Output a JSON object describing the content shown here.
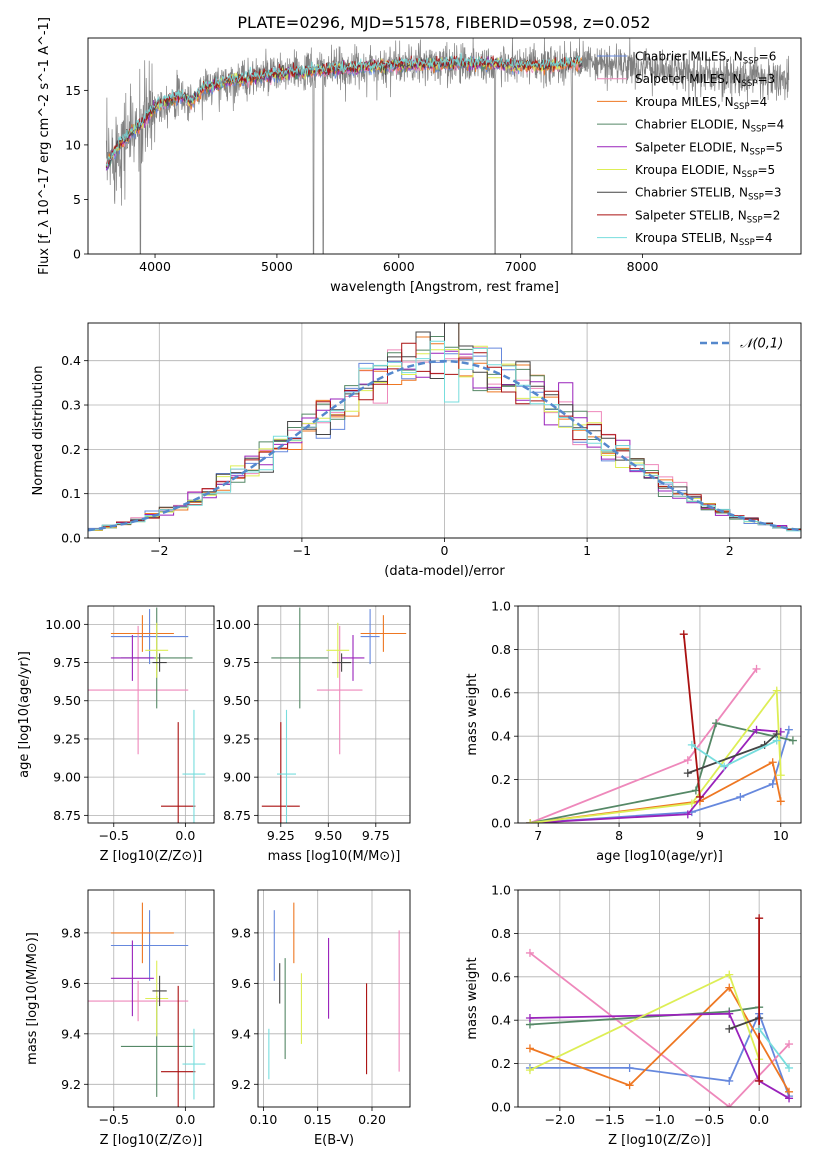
{
  "figure_title": "PLATE=0296, MJD=51578, FIBERID=0598, z=0.052",
  "model_colors": [
    "#6688dd",
    "#ee88bb",
    "#ee7722",
    "#558866",
    "#9922bb",
    "#ddee55",
    "#444444",
    "#aa1111",
    "#77dddd"
  ],
  "chart_data": [
    {
      "id": "spectrum",
      "type": "line",
      "xlabel": "wavelength [Angstrom, rest frame]",
      "ylabel": "Flux [f_λ 10^-17 erg cm^-2 s^-1 A^-1]",
      "xlim": [
        3450,
        9300
      ],
      "ylim": [
        0,
        19.8
      ],
      "xticks": [
        4000,
        5000,
        6000,
        7000,
        8000
      ],
      "yticks": [
        0,
        5,
        10,
        15
      ],
      "grid": false,
      "legend_position": "right",
      "legend": [
        {
          "imf": "Chabrier",
          "lib": "MILES",
          "nssp": "6"
        },
        {
          "imf": "Salpeter",
          "lib": "MILES",
          "nssp": "3"
        },
        {
          "imf": "Kroupa",
          "lib": "MILES",
          "nssp": "4"
        },
        {
          "imf": "Chabrier",
          "lib": "ELODIE",
          "nssp": "4"
        },
        {
          "imf": "Salpeter",
          "lib": "ELODIE",
          "nssp": "5"
        },
        {
          "imf": "Kroupa",
          "lib": "ELODIE",
          "nssp": "5"
        },
        {
          "imf": "Chabrier",
          "lib": "STELIB",
          "nssp": "3"
        },
        {
          "imf": "Salpeter",
          "lib": "STELIB",
          "nssp": "2"
        },
        {
          "imf": "Kroupa",
          "lib": "STELIB",
          "nssp": "4"
        }
      ],
      "data_color": "#808080",
      "data_range": [
        3600,
        9200
      ],
      "continuum": {
        "x": [
          3600,
          3700,
          3800,
          3900,
          4000,
          4100,
          4200,
          4300,
          4400,
          4600,
          4800,
          5000,
          5200,
          5400,
          5600,
          5800,
          6000,
          6300,
          6600,
          6900,
          7200,
          7500,
          7800,
          8100,
          8400,
          8700,
          9000,
          9200
        ],
        "y": [
          8,
          10,
          11,
          12,
          13.5,
          14,
          14.5,
          14,
          15.2,
          15.8,
          16.2,
          16.5,
          16.7,
          16.9,
          17,
          17.2,
          17.3,
          17.4,
          17.5,
          17.3,
          17.2,
          17.5,
          17.3,
          17,
          16.6,
          16.3,
          16.1,
          16
        ]
      },
      "models_range": [
        3600,
        7500
      ],
      "spikes_down": [
        [
          3880,
          0
        ],
        [
          5300,
          0
        ],
        [
          5380,
          0
        ],
        [
          6790,
          0
        ],
        [
          7420,
          0
        ]
      ]
    },
    {
      "id": "residuals",
      "type": "histogram",
      "xlabel": "(data-model)/error",
      "ylabel": "Normed distribution",
      "xlim": [
        -2.5,
        2.5
      ],
      "ylim": [
        0,
        0.485
      ],
      "xticks": [
        -2,
        -1,
        0,
        1,
        2
      ],
      "yticks": [
        0.0,
        0.1,
        0.2,
        0.3,
        0.4
      ],
      "grid": true,
      "bins": 50,
      "reference": {
        "label": "𝒩(0,1)",
        "mean": 0,
        "sigma": 1,
        "color": "#5588cc",
        "style": "dashed"
      },
      "legend_position": "top-right"
    },
    {
      "id": "age_vs_Z",
      "type": "errorbar",
      "xlabel": "Z [log10(Z/Z⊙)]",
      "ylabel": "age [log10(age/yr)]",
      "xlim": [
        -0.68,
        0.2
      ],
      "ylim": [
        8.7,
        10.12
      ],
      "xticks": [
        -0.5,
        0.0
      ],
      "yticks": [
        8.75,
        9.0,
        9.25,
        9.5,
        9.75,
        10.0
      ],
      "grid": true,
      "points": [
        {
          "x": -0.25,
          "xerr": 0.27,
          "y": 9.92,
          "yerr": 0.18
        },
        {
          "x": -0.33,
          "xerr": 0.35,
          "y": 9.57,
          "yerr": 0.42
        },
        {
          "x": -0.3,
          "xerr": 0.22,
          "y": 9.94,
          "yerr": 0.12
        },
        {
          "x": -0.2,
          "xerr": 0.25,
          "y": 9.78,
          "yerr": 0.33
        },
        {
          "x": -0.37,
          "xerr": 0.15,
          "y": 9.78,
          "yerr": 0.15
        },
        {
          "x": -0.2,
          "xerr": 0.08,
          "y": 9.83,
          "yerr": 0.18
        },
        {
          "x": -0.18,
          "xerr": 0.05,
          "y": 9.75,
          "yerr": 0.06
        },
        {
          "x": -0.05,
          "xerr": 0.12,
          "y": 8.81,
          "yerr": 0.55
        },
        {
          "x": 0.06,
          "xerr": 0.08,
          "y": 9.02,
          "yerr": 0.42
        }
      ]
    },
    {
      "id": "age_vs_mass",
      "type": "errorbar",
      "xlabel": "mass [log10(M/M⊙)]",
      "ylabel": "",
      "xlim": [
        9.13,
        9.93
      ],
      "ylim": [
        8.7,
        10.12
      ],
      "xticks": [
        9.25,
        9.5,
        9.75
      ],
      "yticks": [
        8.75,
        9.0,
        9.25,
        9.5,
        9.75,
        10.0
      ],
      "grid": true,
      "points": [
        {
          "x": 9.72,
          "xerr": 0.05,
          "y": 9.92,
          "yerr": 0.18
        },
        {
          "x": 9.56,
          "xerr": 0.12,
          "y": 9.57,
          "yerr": 0.42
        },
        {
          "x": 9.79,
          "xerr": 0.12,
          "y": 9.94,
          "yerr": 0.12
        },
        {
          "x": 9.35,
          "xerr": 0.15,
          "y": 9.78,
          "yerr": 0.33
        },
        {
          "x": 9.63,
          "xerr": 0.06,
          "y": 9.78,
          "yerr": 0.15
        },
        {
          "x": 9.55,
          "xerr": 0.06,
          "y": 9.83,
          "yerr": 0.18
        },
        {
          "x": 9.57,
          "xerr": 0.05,
          "y": 9.75,
          "yerr": 0.06
        },
        {
          "x": 9.25,
          "xerr": 0.1,
          "y": 8.81,
          "yerr": 0.55
        },
        {
          "x": 9.28,
          "xerr": 0.05,
          "y": 9.02,
          "yerr": 0.42
        }
      ]
    },
    {
      "id": "weight_vs_age",
      "type": "line",
      "xlabel": "age [log10(age/yr)]",
      "ylabel": "mass weight",
      "xlim": [
        6.75,
        10.25
      ],
      "ylim": [
        0,
        1
      ],
      "xticks": [
        7,
        8,
        9,
        10
      ],
      "yticks": [
        0.0,
        0.2,
        0.4,
        0.6,
        0.8,
        1.0
      ],
      "grid": true,
      "series": [
        {
          "x": [
            6.9,
            8.9,
            9.5,
            9.9,
            10.1
          ],
          "y": [
            0.0,
            0.05,
            0.12,
            0.18,
            0.43
          ]
        },
        {
          "x": [
            6.9,
            8.85,
            9.7
          ],
          "y": [
            0.0,
            0.29,
            0.71
          ]
        },
        {
          "x": [
            6.9,
            9.0,
            9.9,
            10.0
          ],
          "y": [
            0.0,
            0.1,
            0.28,
            0.1
          ]
        },
        {
          "x": [
            6.9,
            8.95,
            9.2,
            10.15
          ],
          "y": [
            0.0,
            0.15,
            0.46,
            0.38
          ]
        },
        {
          "x": [
            6.9,
            8.85,
            9.7,
            10.0
          ],
          "y": [
            0.0,
            0.04,
            0.43,
            0.42
          ]
        },
        {
          "x": [
            6.9,
            8.9,
            9.95,
            10.0
          ],
          "y": [
            0.0,
            0.09,
            0.61,
            0.22
          ]
        },
        {
          "x": [
            8.85,
            9.8,
            9.95
          ],
          "y": [
            0.23,
            0.36,
            0.41
          ]
        },
        {
          "x": [
            8.8,
            9.0
          ],
          "y": [
            0.87,
            0.12
          ]
        },
        {
          "x": [
            8.9,
            9.3,
            9.95
          ],
          "y": [
            0.36,
            0.26,
            0.38
          ]
        }
      ]
    },
    {
      "id": "mass_vs_Z",
      "type": "errorbar",
      "xlabel": "Z [log10(Z/Z⊙)]",
      "ylabel": "mass [log10(M/M⊙)]",
      "xlim": [
        -0.68,
        0.2
      ],
      "ylim": [
        9.11,
        9.97
      ],
      "xticks": [
        -0.5,
        0.0
      ],
      "yticks": [
        9.2,
        9.4,
        9.6,
        9.8
      ],
      "grid": true,
      "points": [
        {
          "x": -0.25,
          "xerr": 0.27,
          "y": 9.75,
          "yerr": 0.14
        },
        {
          "x": -0.33,
          "xerr": 0.35,
          "y": 9.53,
          "yerr": 0.08
        },
        {
          "x": -0.3,
          "xerr": 0.22,
          "y": 9.8,
          "yerr": 0.12
        },
        {
          "x": -0.2,
          "xerr": 0.25,
          "y": 9.35,
          "yerr": 0.2
        },
        {
          "x": -0.37,
          "xerr": 0.15,
          "y": 9.62,
          "yerr": 0.15
        },
        {
          "x": -0.2,
          "xerr": 0.08,
          "y": 9.54,
          "yerr": 0.15
        },
        {
          "x": -0.18,
          "xerr": 0.05,
          "y": 9.57,
          "yerr": 0.06
        },
        {
          "x": -0.05,
          "xerr": 0.12,
          "y": 9.25,
          "yerr": 0.34
        },
        {
          "x": 0.06,
          "xerr": 0.08,
          "y": 9.28,
          "yerr": 0.14
        }
      ]
    },
    {
      "id": "EBV",
      "type": "errorbar",
      "xlabel": "E(B-V)",
      "ylabel": "",
      "xlim": [
        0.095,
        0.235
      ],
      "ylim": [
        9.11,
        9.97
      ],
      "xticks": [
        0.1,
        0.15,
        0.2
      ],
      "yticks": [
        9.2,
        9.4,
        9.6,
        9.8
      ],
      "grid": true,
      "points": [
        {
          "x": 0.11,
          "y": 9.75,
          "yerr": 0.14
        },
        {
          "x": 0.225,
          "y": 9.53,
          "yerr": 0.28
        },
        {
          "x": 0.128,
          "y": 9.8,
          "yerr": 0.12
        },
        {
          "x": 0.12,
          "y": 9.5,
          "yerr": 0.2
        },
        {
          "x": 0.16,
          "y": 9.62,
          "yerr": 0.16
        },
        {
          "x": 0.135,
          "y": 9.5,
          "yerr": 0.14
        },
        {
          "x": 0.115,
          "y": 9.6,
          "yerr": 0.08
        },
        {
          "x": 0.195,
          "y": 9.42,
          "yerr": 0.18
        },
        {
          "x": 0.105,
          "y": 9.32,
          "yerr": 0.1
        }
      ]
    },
    {
      "id": "weight_vs_Z",
      "type": "line",
      "xlabel": "Z [log10(Z/Z⊙)]",
      "ylabel": "mass weight",
      "xlim": [
        -2.42,
        0.42
      ],
      "ylim": [
        0,
        1
      ],
      "xticks": [
        -2.0,
        -1.5,
        -1.0,
        -0.5,
        0.0
      ],
      "yticks": [
        0.0,
        0.2,
        0.4,
        0.6,
        0.8,
        1.0
      ],
      "grid": true,
      "series": [
        {
          "x": [
            -2.3,
            -1.3,
            -0.3,
            0.0,
            0.3
          ],
          "y": [
            0.18,
            0.18,
            0.12,
            0.43,
            0.05
          ]
        },
        {
          "x": [
            -2.3,
            -0.3,
            0.3
          ],
          "y": [
            0.71,
            0.0,
            0.29
          ]
        },
        {
          "x": [
            -2.3,
            -1.3,
            -0.3,
            0.3
          ],
          "y": [
            0.27,
            0.1,
            0.55,
            0.07
          ]
        },
        {
          "x": [
            -2.3,
            -0.3,
            0.0
          ],
          "y": [
            0.38,
            0.44,
            0.46
          ]
        },
        {
          "x": [
            -2.3,
            -0.3,
            0.0,
            0.3
          ],
          "y": [
            0.41,
            0.43,
            0.12,
            0.04
          ]
        },
        {
          "x": [
            -2.3,
            -0.3,
            0.0
          ],
          "y": [
            0.17,
            0.61,
            0.22
          ]
        },
        {
          "x": [
            -0.3,
            0.0
          ],
          "y": [
            0.36,
            0.41
          ]
        },
        {
          "x": [
            0.0,
            0.0
          ],
          "y": [
            0.87,
            0.12
          ]
        },
        {
          "x": [
            0.0,
            0.3
          ],
          "y": [
            0.36,
            0.18
          ]
        }
      ]
    }
  ]
}
